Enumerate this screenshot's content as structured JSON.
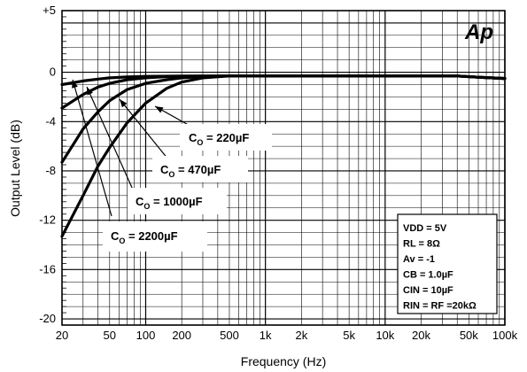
{
  "chart_data": {
    "type": "line",
    "logo": "Ap",
    "xlabel": "Frequency (Hz)",
    "ylabel": "Output Level (dB)",
    "x_scale": "log",
    "xlim": [
      20,
      100000
    ],
    "ylim": [
      -20.5,
      5
    ],
    "grid": true,
    "x_ticks": [
      20,
      50,
      100,
      200,
      500,
      1000,
      2000,
      5000,
      10000,
      20000,
      50000,
      100000
    ],
    "x_tick_labels": [
      "20",
      "50",
      "100",
      "200",
      "500",
      "1k",
      "2k",
      "5k",
      "10k",
      "20k",
      "50k",
      "100k"
    ],
    "y_ticks": [
      5,
      0,
      -4,
      -8,
      -12,
      -16,
      -20
    ],
    "y_tick_labels": [
      "+5",
      "0",
      "-4",
      "-8",
      "-12",
      "-16",
      "-20"
    ],
    "series": [
      {
        "name": "C",
        "sub": "O",
        "value_label": "= 220µF",
        "x": [
          20,
          30,
          40,
          50,
          70,
          100,
          150,
          200,
          300,
          500,
          700,
          1000,
          2000,
          5000,
          10000,
          20000,
          40000,
          60000,
          100000
        ],
        "y": [
          -13.3,
          -10,
          -7.6,
          -6.1,
          -4.1,
          -2.5,
          -1.3,
          -0.8,
          -0.45,
          -0.3,
          -0.3,
          -0.3,
          -0.3,
          -0.3,
          -0.3,
          -0.3,
          -0.3,
          -0.4,
          -0.5
        ]
      },
      {
        "name": "C",
        "sub": "O",
        "value_label": "= 470µF",
        "x": [
          20,
          30,
          40,
          50,
          70,
          100,
          150,
          200,
          300,
          500,
          1000,
          2000,
          10000,
          40000,
          60000,
          100000
        ],
        "y": [
          -7.3,
          -4.6,
          -3.2,
          -2.3,
          -1.4,
          -0.9,
          -0.6,
          -0.45,
          -0.35,
          -0.3,
          -0.3,
          -0.3,
          -0.3,
          -0.3,
          -0.4,
          -0.5
        ]
      },
      {
        "name": "C",
        "sub": "O",
        "value_label": "= 1000µF",
        "x": [
          20,
          30,
          40,
          50,
          70,
          100,
          150,
          200,
          300,
          500,
          1000,
          10000,
          40000,
          60000,
          100000
        ],
        "y": [
          -2.9,
          -1.8,
          -1.2,
          -0.9,
          -0.6,
          -0.45,
          -0.35,
          -0.32,
          -0.3,
          -0.3,
          -0.3,
          -0.3,
          -0.3,
          -0.4,
          -0.5
        ]
      },
      {
        "name": "C",
        "sub": "O",
        "value_label": "= 2200µF",
        "x": [
          20,
          30,
          40,
          50,
          70,
          100,
          200,
          500,
          1000,
          10000,
          40000,
          60000,
          100000
        ],
        "y": [
          -1.0,
          -0.7,
          -0.55,
          -0.45,
          -0.38,
          -0.33,
          -0.3,
          -0.3,
          -0.3,
          -0.3,
          -0.3,
          -0.4,
          -0.5
        ]
      }
    ],
    "conditions": [
      "VDD = 5V",
      "RL = 8Ω",
      "Av = -1",
      "CB = 1.0µF",
      "CIN = 10µF",
      "RIN = RF =20kΩ"
    ]
  }
}
